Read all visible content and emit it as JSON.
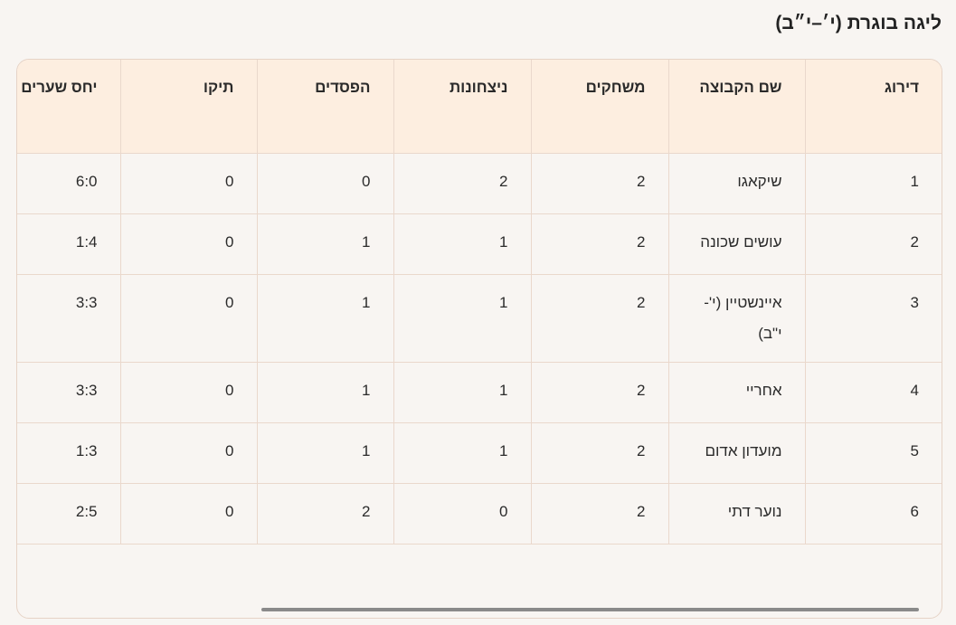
{
  "title": "ליגה בוגרת (י׳–י״ב)",
  "table": {
    "headers": [
      "דירוג",
      "שם הקבוצה",
      "משחקים",
      "ניצחונות",
      "הפסדים",
      "תיקו",
      "יחס שערים"
    ],
    "rows": [
      [
        "1",
        "שיקאגו",
        "2",
        "2",
        "0",
        "0",
        "6:0"
      ],
      [
        "2",
        "עושים שכונה",
        "2",
        "1",
        "1",
        "0",
        "1:4"
      ],
      [
        "3",
        "איינשטיין (י'-י\"ב)",
        "2",
        "1",
        "1",
        "0",
        "3:3"
      ],
      [
        "4",
        "אחריי",
        "2",
        "1",
        "1",
        "0",
        "3:3"
      ],
      [
        "5",
        "מועדון אדום",
        "2",
        "1",
        "1",
        "0",
        "1:3"
      ],
      [
        "6",
        "נוער דתי",
        "2",
        "0",
        "2",
        "0",
        "2:5"
      ]
    ]
  },
  "colors": {
    "background": "#f8f5f2",
    "header": "#fdeee0",
    "border": "#ead8cc"
  }
}
